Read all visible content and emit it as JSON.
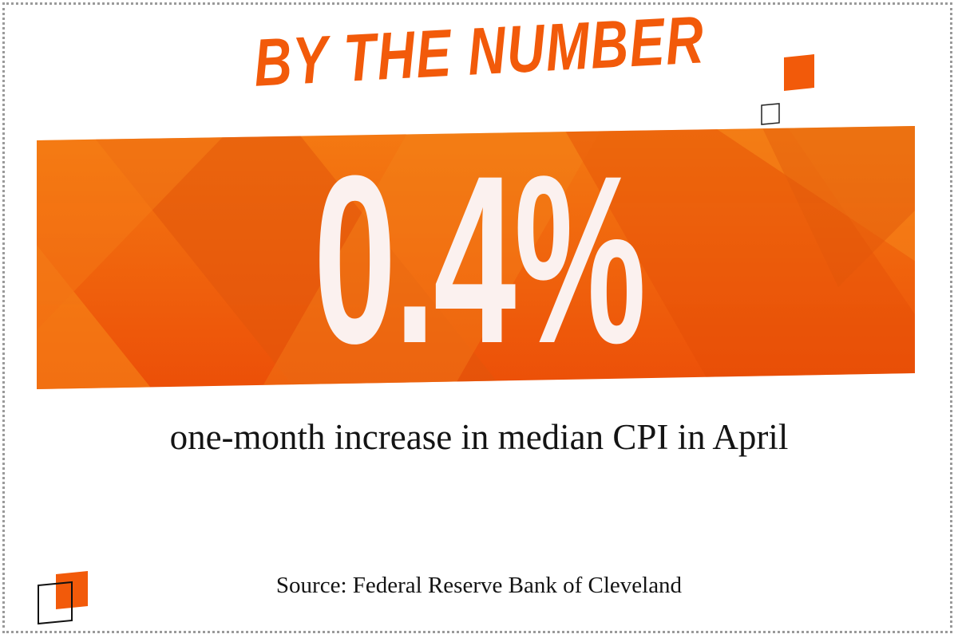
{
  "headline": "BY THE NUMBER",
  "value": "0.4%",
  "caption": "one-month increase in median CPI in April",
  "source": "Source: Federal Reserve Bank of Cleveland",
  "colors": {
    "accent": "#f25a0a",
    "banner_light": "#f47a12",
    "banner_dark": "#e5500a",
    "number_text": "#fbf1ef",
    "text": "#141414",
    "border": "#9a9a9a"
  },
  "icons": [
    "square-outline-icon",
    "square-filled-icon"
  ]
}
